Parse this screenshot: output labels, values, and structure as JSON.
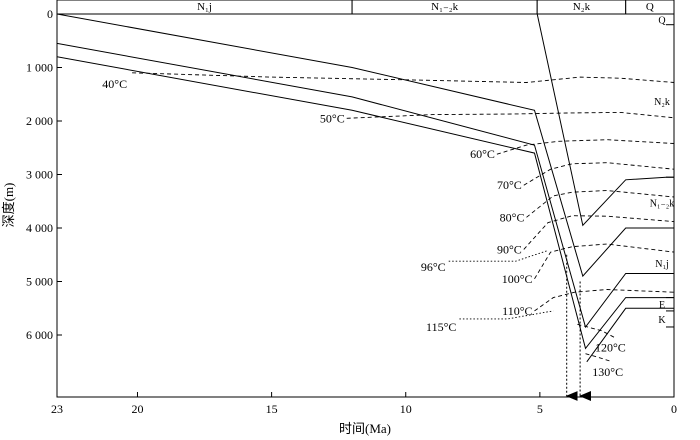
{
  "chart_data": {
    "type": "line",
    "xlabel": "时间(Ma)",
    "ylabel": "深度(m)",
    "xlim": [
      23,
      0
    ],
    "ylim": [
      0,
      7000
    ],
    "x_ticks": [
      "23",
      "20",
      "15",
      "10",
      "5",
      "0"
    ],
    "x_tick_values": [
      23,
      20,
      15,
      10,
      5,
      0
    ],
    "y_ticks": [
      "0",
      "1 000",
      "2 000",
      "3 000",
      "4 000",
      "5 000",
      "6 000"
    ],
    "y_tick_values": [
      0,
      1000,
      2000,
      3000,
      4000,
      5000,
      6000
    ],
    "top_strata": [
      {
        "label": "N₁j",
        "from": 23,
        "to": 12
      },
      {
        "label": "N₁₋₂k",
        "from": 12,
        "to": 5.1
      },
      {
        "label": "N₂k",
        "from": 5.1,
        "to": 1.8
      },
      {
        "label": "Q",
        "from": 1.8,
        "to": 0
      }
    ],
    "right_strata": [
      {
        "label": "Q",
        "top": 0,
        "bottom": 200
      },
      {
        "label": "N₂k",
        "top": 200,
        "bottom": 3050
      },
      {
        "label": "N₁₋₂k",
        "top": 3050,
        "bottom": 4000
      },
      {
        "label": "N₁j",
        "top": 4000,
        "bottom": 5300
      },
      {
        "label": "E",
        "top": 5300,
        "bottom": 5550
      },
      {
        "label": "K",
        "top": 5550,
        "bottom": 5850
      }
    ],
    "burial_curves": [
      {
        "x": [
          5.1,
          3.4,
          1.8,
          0.3,
          0
        ],
        "y": [
          0,
          3950,
          3100,
          3050,
          3050
        ]
      },
      {
        "x": [
          23,
          12,
          5.2,
          3.4,
          1.8,
          0
        ],
        "y": [
          0,
          1000,
          1800,
          4900,
          4000,
          4000
        ]
      },
      {
        "x": [
          23,
          12,
          5.2,
          3.3,
          1.8,
          0
        ],
        "y": [
          550,
          1550,
          2450,
          5850,
          4850,
          4850
        ]
      },
      {
        "x": [
          23,
          12,
          5.2,
          3.3,
          1.8,
          0
        ],
        "y": [
          800,
          1800,
          2600,
          6250,
          5300,
          5300
        ]
      },
      {
        "x": [
          3.25,
          1.8,
          0
        ],
        "y": [
          6500,
          5500,
          5500
        ]
      }
    ],
    "isotherms": [
      {
        "label": "40°C",
        "x": [
          20.2,
          15,
          10,
          5.5,
          3.5,
          2,
          0
        ],
        "y": [
          1100,
          1180,
          1230,
          1280,
          1180,
          1200,
          1280
        ]
      },
      {
        "label": "50°C",
        "x": [
          12.2,
          9,
          6,
          4,
          2,
          0
        ],
        "y": [
          1950,
          1880,
          1870,
          1850,
          1840,
          1940
        ]
      },
      {
        "label": "60°C",
        "x": [
          6.6,
          5.5,
          4.3,
          2.5,
          0
        ],
        "y": [
          2620,
          2450,
          2380,
          2350,
          2420
        ]
      },
      {
        "label": "70°C",
        "x": [
          5.6,
          4.6,
          3.8,
          2.5,
          0
        ],
        "y": [
          3200,
          2900,
          2800,
          2780,
          2900
        ]
      },
      {
        "label": "80°C",
        "x": [
          5.5,
          4.5,
          3.8,
          2.5,
          0
        ],
        "y": [
          3800,
          3400,
          3330,
          3300,
          3420
        ]
      },
      {
        "label": "90°C",
        "x": [
          5.6,
          4.7,
          3.8,
          2.5,
          0
        ],
        "y": [
          4400,
          3900,
          3770,
          3780,
          3880
        ]
      },
      {
        "label": "96°C",
        "x": [
          8.4,
          5.9,
          4.7
        ],
        "y": [
          4620,
          4620,
          4420
        ]
      },
      {
        "label": "100°C",
        "x": [
          5.2,
          4.6,
          3.8,
          2.5,
          0
        ],
        "y": [
          4950,
          4450,
          4350,
          4300,
          4450
        ]
      },
      {
        "label": "110°C",
        "x": [
          5.2,
          4.5,
          3.7,
          2.5,
          0
        ],
        "y": [
          5550,
          5300,
          5200,
          5150,
          5200
        ]
      },
      {
        "label": "115°C",
        "x": [
          8,
          6.2,
          4.5
        ],
        "y": [
          5700,
          5700,
          5550
        ]
      },
      {
        "label": "120°C",
        "x": [
          3.6,
          2.7,
          2.2
        ],
        "y": [
          5800,
          5920,
          6050
        ]
      },
      {
        "label": "130°C",
        "x": [
          3.3,
          2.8,
          2.3
        ],
        "y": [
          6350,
          6420,
          6500
        ]
      }
    ],
    "markers": [
      {
        "x": 4.0,
        "from_y": 4500
      },
      {
        "x": 3.5,
        "from_y": 5000
      }
    ]
  }
}
